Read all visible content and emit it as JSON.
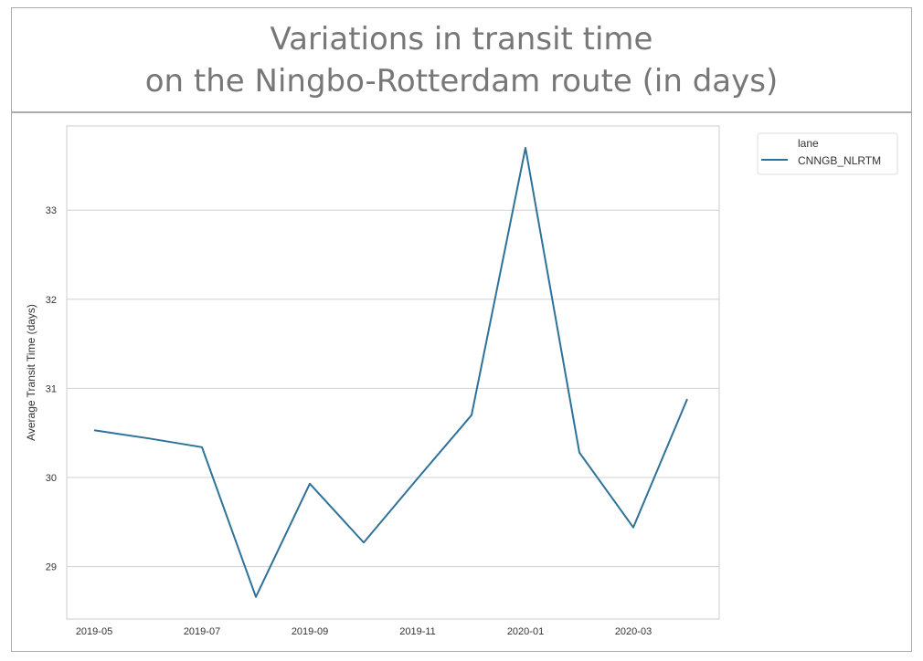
{
  "chart_data": {
    "type": "line",
    "title": [
      "Variations in transit time",
      "on the Ningbo-Rotterdam route (in days)"
    ],
    "xlabel": "",
    "ylabel": "Average Transit Time (days)",
    "x": [
      "2019-05",
      "2019-06",
      "2019-07",
      "2019-08",
      "2019-09",
      "2019-10",
      "2019-11",
      "2019-12",
      "2020-01",
      "2020-02",
      "2020-03",
      "2020-04"
    ],
    "x_ticks": [
      "2019-05",
      "2019-07",
      "2019-09",
      "2019-11",
      "2020-01",
      "2020-03"
    ],
    "y_ticks": [
      29,
      30,
      31,
      32,
      33
    ],
    "ylim": [
      28.45,
      34.4
    ],
    "grid": "horizontal",
    "legend": {
      "title": "lane",
      "placement": "outside-top-right"
    },
    "series": [
      {
        "name": "CNNGB_NLRTM",
        "color": "#2e7199",
        "values": [
          30.53,
          30.44,
          30.34,
          28.66,
          29.93,
          29.27,
          29.99,
          30.7,
          33.7,
          30.28,
          29.44,
          30.88
        ]
      }
    ]
  }
}
